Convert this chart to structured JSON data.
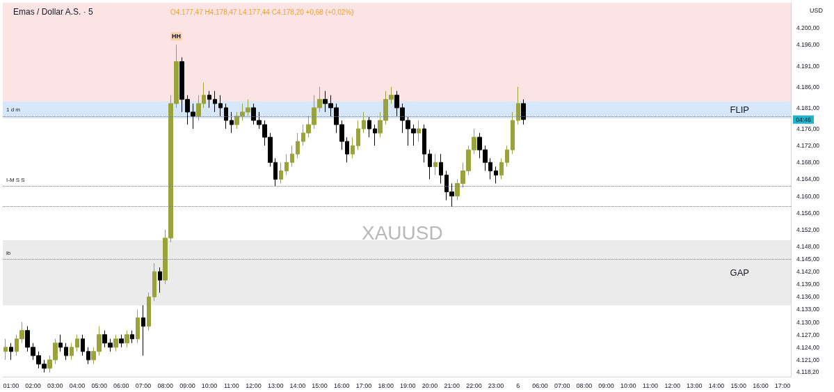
{
  "chart_data": {
    "type": "candlestick",
    "title": "Emas / Dollar A.S. · 5",
    "subtitle": "O4.177,47 H4.178,47 L4.177,44 C4.178,20 +0,68 (+0,02%)",
    "categories": [
      null,
      "01:00",
      null,
      null,
      null,
      "02:00",
      null,
      null,
      null,
      "03:00",
      null,
      null,
      null,
      "04:00",
      null,
      null,
      null,
      "05:00",
      null,
      null,
      null,
      "06:00",
      null,
      null,
      null,
      "07:00",
      null,
      null,
      null,
      "08:00",
      null,
      null,
      null,
      "09:00",
      null,
      null,
      null,
      "10:00",
      null,
      null,
      null,
      "11:00",
      null,
      null,
      null,
      "12:00",
      null,
      null,
      null,
      "13:00",
      null,
      null,
      null,
      "14:00",
      null,
      null,
      null,
      "15:00",
      null,
      null,
      null,
      "16:00",
      null,
      null,
      null,
      "17:00",
      null,
      null,
      null,
      "18:00",
      null,
      null,
      null,
      "19:00",
      null,
      null,
      null,
      "20:00",
      null,
      null,
      null,
      "21:00",
      null,
      null,
      null,
      "22:00",
      null,
      null,
      null,
      "23:00",
      null,
      null,
      null,
      "6",
      null,
      null,
      null,
      "06:00",
      null,
      null,
      null,
      "07:00",
      null,
      null,
      null,
      "08:00",
      null,
      null,
      null,
      "09:00",
      null,
      null,
      null,
      "10:00",
      null,
      null,
      null,
      "11:00",
      null,
      null,
      null,
      "12:00",
      null,
      null,
      null,
      "13:00",
      null,
      null,
      null,
      "14:00",
      null,
      null,
      null,
      "15:00",
      null,
      null,
      null,
      "16:00",
      null,
      null,
      null,
      "17:00",
      null
    ],
    "colors": [
      "#9aa33b",
      "#000000",
      "#9aa33b",
      "#9aa33b",
      "#000000",
      "#000000",
      "#000000",
      "#000000",
      "#9aa33b",
      "#9aa33b",
      "#000000",
      "#000000",
      "#9aa33b",
      "#9aa33b",
      "#000000",
      "#000000",
      "#9aa33b",
      "#9aa33b",
      "#000000",
      "#000000",
      "#9aa33b",
      "#000000",
      "#9aa33b",
      "#000000",
      "#9aa33b",
      "#000000",
      "#9aa33b",
      "#9aa33b",
      "#000000",
      "#9aa33b",
      "#9aa33b",
      "#9aa33b",
      "#000000",
      "#000000",
      "#000000",
      "#9aa33b",
      "#9aa33b",
      "#000000",
      "#000000",
      "#000000",
      "#000000",
      "#000000",
      "#9aa33b",
      "#9aa33b",
      "#9aa33b",
      "#000000",
      "#000000",
      "#000000",
      "#000000",
      "#000000",
      "#9aa33b",
      "#9aa33b",
      "#9aa33b",
      "#9aa33b",
      "#9aa33b",
      "#9aa33b",
      "#9aa33b",
      "#9aa33b",
      "#000000",
      "#000000",
      "#000000",
      "#000000",
      "#000000",
      "#9aa33b",
      "#9aa33b",
      "#9aa33b",
      "#000000",
      "#000000",
      "#9aa33b",
      "#9aa33b",
      "#9aa33b",
      "#000000",
      "#000000",
      "#000000",
      "#000000",
      "#9aa33b",
      "#000000",
      "#000000",
      "#9aa33b",
      "#000000",
      "#000000",
      "#000000",
      "#9aa33b",
      "#9aa33b",
      "#9aa33b",
      "#9aa33b",
      "#000000",
      "#000000",
      "#000000",
      "#000000",
      "#9aa33b",
      "#9aa33b",
      "#9aa33b",
      "#9aa33b",
      "#000000",
      null,
      null,
      null,
      null,
      null,
      null,
      null,
      null,
      null,
      null,
      null,
      null,
      null,
      null,
      null,
      null,
      null,
      null,
      null,
      null,
      null,
      null,
      null,
      null,
      null,
      null,
      null,
      null,
      null,
      null,
      null,
      null,
      null,
      null,
      null,
      null,
      null,
      null,
      null,
      null,
      null,
      null,
      null,
      null,
      null,
      null,
      null,
      null
    ],
    "ohlc": [
      [
        4123,
        4126,
        4121,
        4124
      ],
      [
        4124,
        4125,
        4121,
        4123
      ],
      [
        4123,
        4127,
        4122,
        4126
      ],
      [
        4126,
        4130,
        4125,
        4128
      ],
      [
        4128,
        4129,
        4123,
        4124
      ],
      [
        4124,
        4125,
        4121,
        4122
      ],
      [
        4122,
        4123,
        4119,
        4120
      ],
      [
        4120,
        4121,
        4118,
        4119
      ],
      [
        4119,
        4122,
        4118,
        4121
      ],
      [
        4121,
        4126,
        4120,
        4125
      ],
      [
        4125,
        4127,
        4123,
        4124
      ],
      [
        4124,
        4125,
        4121,
        4122
      ],
      [
        4122,
        4125,
        4121,
        4124
      ],
      [
        4124,
        4127,
        4123,
        4126
      ],
      [
        4126,
        4127,
        4122,
        4123
      ],
      [
        4123,
        4124,
        4120,
        4121
      ],
      [
        4121,
        4124,
        4120,
        4123
      ],
      [
        4123,
        4129,
        4122,
        4127
      ],
      [
        4127,
        4128,
        4124,
        4125
      ],
      [
        4125,
        4126,
        4123,
        4124
      ],
      [
        4124,
        4127,
        4123,
        4126
      ],
      [
        4126,
        4127,
        4124,
        4125
      ],
      [
        4125,
        4128,
        4124,
        4127
      ],
      [
        4127,
        4128,
        4125,
        4126
      ],
      [
        4126,
        4133,
        4125,
        4131
      ],
      [
        4131,
        4134,
        4122,
        4129
      ],
      [
        4129,
        4137,
        4128,
        4136
      ],
      [
        4136,
        4144,
        4135,
        4142
      ],
      [
        4142,
        4143,
        4137,
        4140
      ],
      [
        4140,
        4152,
        4139,
        4150
      ],
      [
        4150,
        4184,
        4149,
        4182
      ],
      [
        4182,
        4196,
        4181,
        4192
      ],
      [
        4192,
        4193,
        4180,
        4183
      ],
      [
        4183,
        4184,
        4177,
        4180
      ],
      [
        4180,
        4182,
        4176,
        4179
      ],
      [
        4179,
        4184,
        4178,
        4182
      ],
      [
        4182,
        4187,
        4181,
        4184
      ],
      [
        4184,
        4185,
        4181,
        4183
      ],
      [
        4183,
        4185,
        4180,
        4182
      ],
      [
        4182,
        4184,
        4179,
        4181
      ],
      [
        4181,
        4182,
        4176,
        4178
      ],
      [
        4178,
        4180,
        4175,
        4177
      ],
      [
        4177,
        4180,
        4176,
        4179
      ],
      [
        4179,
        4182,
        4178,
        4180
      ],
      [
        4180,
        4183,
        4179,
        4181
      ],
      [
        4181,
        4182,
        4177,
        4178
      ],
      [
        4178,
        4180,
        4176,
        4177
      ],
      [
        4177,
        4178,
        4172,
        4174
      ],
      [
        4174,
        4175,
        4167,
        4168
      ],
      [
        4168,
        4169,
        4162.4,
        4164
      ],
      [
        4164,
        4168,
        4163,
        4166
      ],
      [
        4166,
        4170,
        4165,
        4168
      ],
      [
        4168,
        4172,
        4167,
        4170
      ],
      [
        4170,
        4175,
        4169,
        4173
      ],
      [
        4173,
        4177,
        4172,
        4175
      ],
      [
        4175,
        4179,
        4174,
        4177
      ],
      [
        4177,
        4184,
        4176,
        4181
      ],
      [
        4181,
        4186,
        4180,
        4183
      ],
      [
        4183,
        4185,
        4180,
        4182
      ],
      [
        4182,
        4184,
        4179,
        4181
      ],
      [
        4181,
        4182,
        4175,
        4177
      ],
      [
        4177,
        4178,
        4171,
        4173
      ],
      [
        4173,
        4174,
        4168,
        4170
      ],
      [
        4170,
        4174,
        4169,
        4172
      ],
      [
        4172,
        4178,
        4171,
        4176
      ],
      [
        4176,
        4180,
        4175,
        4178
      ],
      [
        4178,
        4179,
        4174,
        4176
      ],
      [
        4176,
        4177,
        4172,
        4175
      ],
      [
        4175,
        4180,
        4174,
        4178
      ],
      [
        4178,
        4185,
        4177,
        4183
      ],
      [
        4183,
        4186,
        4182,
        4184
      ],
      [
        4184,
        4185,
        4179,
        4181
      ],
      [
        4181,
        4182,
        4175,
        4178
      ],
      [
        4178,
        4179,
        4172,
        4176
      ],
      [
        4176,
        4177,
        4172,
        4175
      ],
      [
        4175,
        4178,
        4173,
        4176
      ],
      [
        4176,
        4177,
        4168,
        4170
      ],
      [
        4170,
        4171,
        4164,
        4167
      ],
      [
        4167,
        4170,
        4165,
        4168
      ],
      [
        4168,
        4170,
        4163,
        4165
      ],
      [
        4165,
        4166,
        4159,
        4161
      ],
      [
        4161,
        4163,
        4157.5,
        4160
      ],
      [
        4160,
        4164,
        4159,
        4163
      ],
      [
        4163,
        4168,
        4162,
        4166
      ],
      [
        4166,
        4172,
        4165,
        4171
      ],
      [
        4171,
        4176,
        4170,
        4174
      ],
      [
        4174,
        4175,
        4169,
        4171
      ],
      [
        4171,
        4172,
        4166,
        4168
      ],
      [
        4168,
        4169,
        4164,
        4166
      ],
      [
        4166,
        4167,
        4163,
        4165
      ],
      [
        4165,
        4169,
        4164,
        4168
      ],
      [
        4168,
        4172,
        4167,
        4171
      ],
      [
        4171,
        4180,
        4170,
        4178
      ],
      [
        4178,
        4186,
        4177,
        4182
      ],
      [
        4182,
        4183,
        4177,
        4178.2
      ],
      null,
      null,
      null,
      null,
      null,
      null,
      null,
      null,
      null,
      null,
      null,
      null,
      null,
      null,
      null,
      null,
      null,
      null,
      null,
      null,
      null,
      null,
      null,
      null,
      null,
      null,
      null,
      null,
      null,
      null,
      null,
      null,
      null,
      null,
      null,
      null,
      null,
      null,
      null,
      null,
      null,
      null,
      null,
      null,
      null,
      null,
      null,
      null
    ],
    "ylim": [
      4117,
      4206
    ],
    "yticks": [
      {
        "value": 4200,
        "label": "4.200,00"
      },
      {
        "value": 4196,
        "label": "4.196,00"
      },
      {
        "value": 4191,
        "label": "4.191,00"
      },
      {
        "value": 4186,
        "label": "4.186,00"
      },
      {
        "value": 4181,
        "label": "4.181,00"
      },
      {
        "value": 4176,
        "label": "4.176,00"
      },
      {
        "value": 4172,
        "label": "4.172,00"
      },
      {
        "value": 4168,
        "label": "4.168,00"
      },
      {
        "value": 4164,
        "label": "4.164,00"
      },
      {
        "value": 4160,
        "label": "4.160,00"
      },
      {
        "value": 4156,
        "label": "4.156,00"
      },
      {
        "value": 4152,
        "label": "4.152,00"
      },
      {
        "value": 4148,
        "label": "4.148,00"
      },
      {
        "value": 4145,
        "label": "4.145,00"
      },
      {
        "value": 4142,
        "label": "4.142,00"
      },
      {
        "value": 4139,
        "label": "4.139,00"
      },
      {
        "value": 4136,
        "label": "4.136,00"
      },
      {
        "value": 4133,
        "label": "4.133,00"
      },
      {
        "value": 4130,
        "label": "4.130,00"
      },
      {
        "value": 4127,
        "label": "4.127,00"
      },
      {
        "value": 4124,
        "label": "4.124,00"
      },
      {
        "value": 4121,
        "label": "4.121,00"
      },
      {
        "value": 4118.2,
        "label": "4.118,20"
      }
    ],
    "bands": [
      {
        "axis": "y",
        "from": 4181,
        "to": 4206,
        "color": "#fde4e4"
      },
      {
        "axis": "y",
        "from": 4178.5,
        "to": 4182.5,
        "label": "FLIP",
        "color": "#d6e6fb"
      },
      {
        "axis": "y",
        "from": 4134,
        "to": 4149.5,
        "label": "GAP",
        "color": "#ebebeb"
      }
    ],
    "ref_lines": [
      {
        "axis": "y",
        "value": 4162.4,
        "label": "I-M S S",
        "line_style": "dotted"
      },
      {
        "axis": "y",
        "value": 4157.5,
        "line_style": "dotted"
      },
      {
        "axis": "y",
        "value": 4145,
        "label": "ib",
        "line_style": "dotted"
      },
      {
        "axis": "y",
        "value": 4179,
        "label": "1 d m",
        "line_style": "dotted"
      }
    ],
    "annotations": [
      "XAUUSD",
      "USD",
      {
        "text": "HH",
        "y": 4196
      },
      {
        "text": "04:46",
        "y": 4178.2
      }
    ],
    "grid": false
  }
}
